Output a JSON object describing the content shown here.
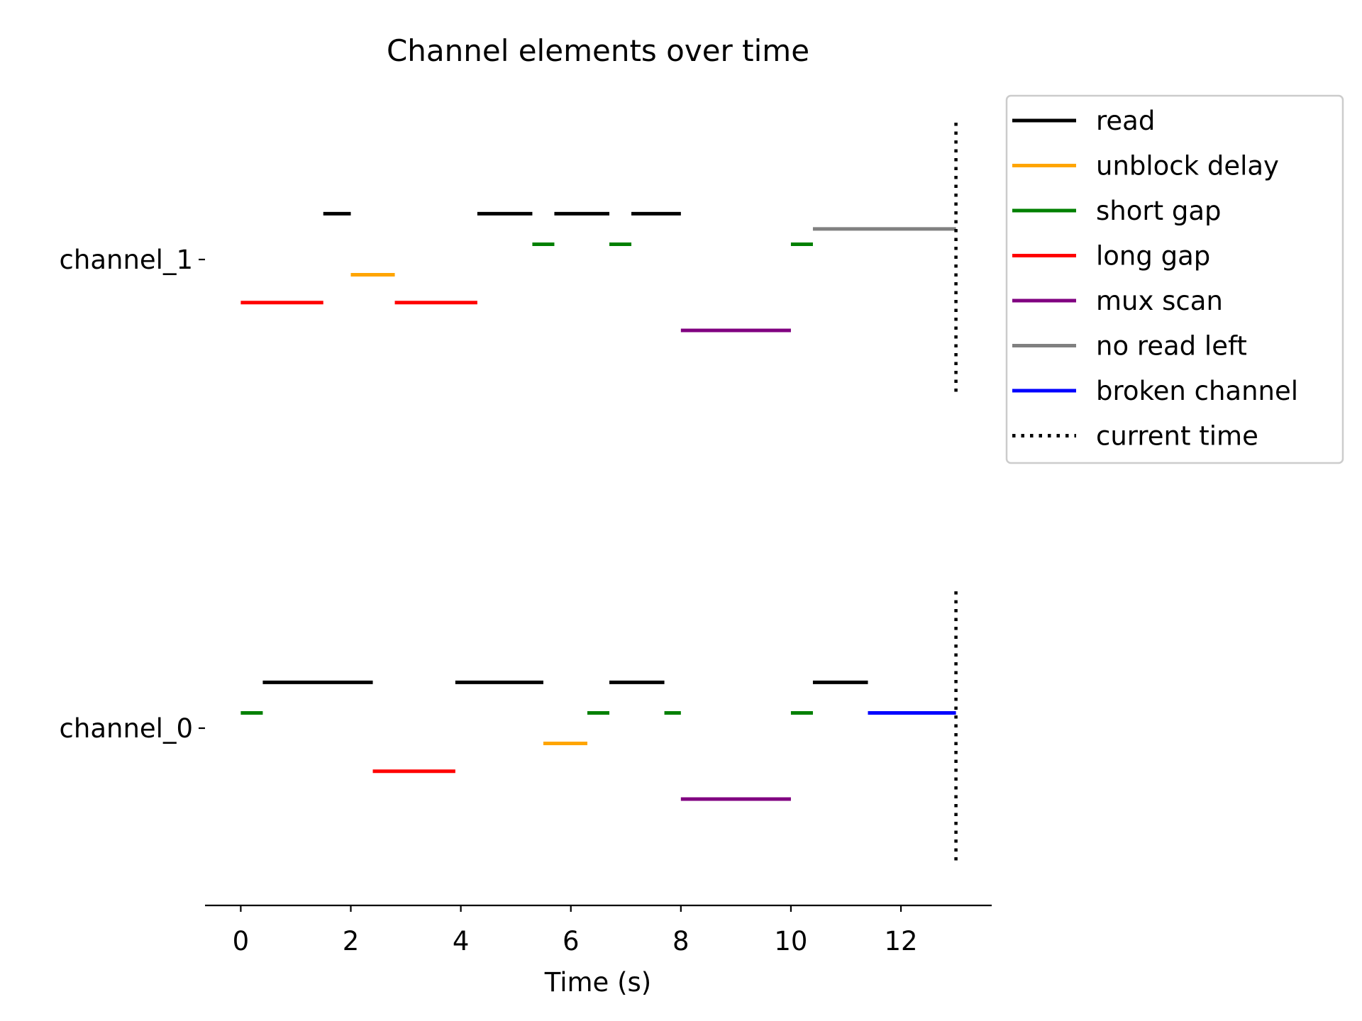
{
  "chart_data": {
    "type": "timeline",
    "title": "Channel elements over time",
    "xlabel": "Time (s)",
    "ylabel": "",
    "xlim": [
      -0.65,
      13.65
    ],
    "x_ticks": [
      0,
      2,
      4,
      6,
      8,
      10,
      12
    ],
    "channels": [
      "channel_0",
      "channel_1"
    ],
    "legend_position": "outside-right-top",
    "grid": false,
    "current_time": 13,
    "categories": [
      {
        "key": "read",
        "label": "read",
        "color": "#000000",
        "offset": 0.066
      },
      {
        "key": "unblock_delay",
        "label": "unblock delay",
        "color": "#ffa500",
        "offset": -0.022
      },
      {
        "key": "short_gap",
        "label": "short gap",
        "color": "#008000",
        "offset": 0.022
      },
      {
        "key": "long_gap",
        "label": "long gap",
        "color": "#ff0000",
        "offset": -0.062
      },
      {
        "key": "mux_scan",
        "label": "mux scan",
        "color": "#800080",
        "offset": -0.102
      },
      {
        "key": "no_read_left",
        "label": "no read left",
        "color": "#808080",
        "offset": 0.044
      },
      {
        "key": "broken_channel",
        "label": "broken channel",
        "color": "#0000ff",
        "offset": 0.022
      }
    ],
    "current_time_legend": "current time",
    "segments": [
      {
        "channel": "channel_1",
        "category": "long_gap",
        "start": 0.0,
        "end": 1.5
      },
      {
        "channel": "channel_1",
        "category": "read",
        "start": 1.5,
        "end": 2.0
      },
      {
        "channel": "channel_1",
        "category": "unblock_delay",
        "start": 2.0,
        "end": 2.8
      },
      {
        "channel": "channel_1",
        "category": "long_gap",
        "start": 2.8,
        "end": 4.3
      },
      {
        "channel": "channel_1",
        "category": "read",
        "start": 4.3,
        "end": 5.3
      },
      {
        "channel": "channel_1",
        "category": "short_gap",
        "start": 5.3,
        "end": 5.7
      },
      {
        "channel": "channel_1",
        "category": "read",
        "start": 5.7,
        "end": 6.7
      },
      {
        "channel": "channel_1",
        "category": "short_gap",
        "start": 6.7,
        "end": 7.1
      },
      {
        "channel": "channel_1",
        "category": "read",
        "start": 7.1,
        "end": 8.0
      },
      {
        "channel": "channel_1",
        "category": "mux_scan",
        "start": 8.0,
        "end": 10.0
      },
      {
        "channel": "channel_1",
        "category": "short_gap",
        "start": 10.0,
        "end": 10.4
      },
      {
        "channel": "channel_1",
        "category": "no_read_left",
        "start": 10.4,
        "end": 13.0
      },
      {
        "channel": "channel_0",
        "category": "short_gap",
        "start": 0.0,
        "end": 0.4
      },
      {
        "channel": "channel_0",
        "category": "read",
        "start": 0.4,
        "end": 2.4
      },
      {
        "channel": "channel_0",
        "category": "long_gap",
        "start": 2.4,
        "end": 3.9
      },
      {
        "channel": "channel_0",
        "category": "read",
        "start": 3.9,
        "end": 5.5
      },
      {
        "channel": "channel_0",
        "category": "unblock_delay",
        "start": 5.5,
        "end": 6.3
      },
      {
        "channel": "channel_0",
        "category": "short_gap",
        "start": 6.3,
        "end": 6.7
      },
      {
        "channel": "channel_0",
        "category": "read",
        "start": 6.7,
        "end": 7.7
      },
      {
        "channel": "channel_0",
        "category": "short_gap",
        "start": 7.7,
        "end": 8.0
      },
      {
        "channel": "channel_0",
        "category": "mux_scan",
        "start": 8.0,
        "end": 10.0
      },
      {
        "channel": "channel_0",
        "category": "short_gap",
        "start": 10.0,
        "end": 10.4
      },
      {
        "channel": "channel_0",
        "category": "read",
        "start": 10.4,
        "end": 11.4
      },
      {
        "channel": "channel_0",
        "category": "broken_channel",
        "start": 11.4,
        "end": 13.0
      }
    ]
  }
}
